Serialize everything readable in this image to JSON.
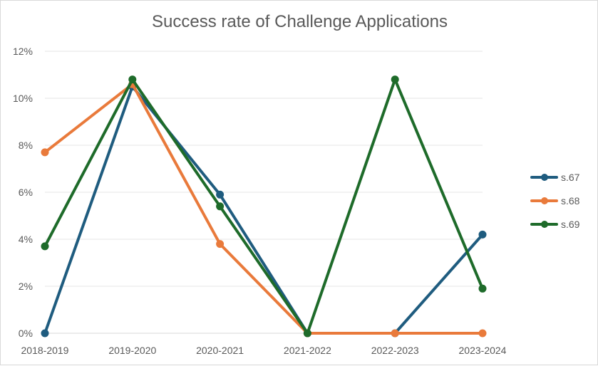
{
  "chart_data": {
    "type": "line",
    "title": "Success rate of Challenge Applications",
    "xlabel": "",
    "ylabel": "",
    "categories": [
      "2018-2019",
      "2019-2020",
      "2020-2021",
      "2021-2022",
      "2022-2023",
      "2023-2024"
    ],
    "ylim": [
      0,
      12
    ],
    "yticks": [
      0,
      2,
      4,
      6,
      8,
      10,
      12
    ],
    "ytick_labels": [
      "0%",
      "2%",
      "4%",
      "6%",
      "8%",
      "10%",
      "12%"
    ],
    "grid": true,
    "legend_position": "right",
    "series": [
      {
        "name": "s.67",
        "color": "#1f5c7f",
        "values": [
          0,
          10.5,
          5.9,
          0,
          0,
          4.2
        ]
      },
      {
        "name": "s.68",
        "color": "#e97a3b",
        "values": [
          7.7,
          10.6,
          3.8,
          0,
          0,
          0
        ]
      },
      {
        "name": "s.69",
        "color": "#1e6b2a",
        "values": [
          3.7,
          10.8,
          5.4,
          0,
          10.8,
          1.9
        ]
      }
    ]
  }
}
